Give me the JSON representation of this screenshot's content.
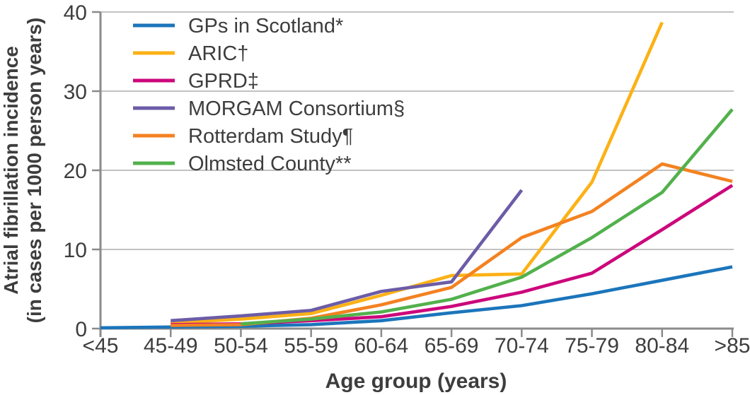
{
  "chart_data": {
    "type": "line",
    "title": "",
    "xlabel": "Age group (years)",
    "ylabel_line1": "Atrial fibrillation incidence",
    "ylabel_line2": "(in cases per 1000 person years)",
    "categories": [
      "<45",
      "45-49",
      "50-54",
      "55-59",
      "60-64",
      "65-69",
      "70-74",
      "75-79",
      "80-84",
      ">85"
    ],
    "yticks": [
      0,
      10,
      20,
      30,
      40
    ],
    "ylim": [
      0,
      40
    ],
    "grid": "horizontal",
    "legend_position": "top-left-inside",
    "series": [
      {
        "name": "GPs in Scotland*",
        "color": "#1b75bb",
        "values": [
          0.1,
          0.2,
          0.3,
          0.5,
          1.0,
          2.0,
          2.9,
          4.4,
          6.1,
          7.8
        ]
      },
      {
        "name": "ARIC†",
        "color": "#fcb115",
        "values": [
          null,
          0.7,
          1.2,
          1.9,
          4.2,
          6.7,
          6.9,
          18.5,
          38.7,
          null
        ]
      },
      {
        "name": "GPRD‡",
        "color": "#cc077c",
        "values": [
          null,
          0.5,
          0.6,
          1.0,
          1.5,
          2.8,
          4.6,
          7.0,
          12.5,
          18.1
        ]
      },
      {
        "name": "MORGAM Consortium§",
        "color": "#6c5ca7",
        "values": [
          null,
          1.0,
          1.6,
          2.3,
          4.7,
          5.9,
          17.5,
          null,
          null,
          null
        ]
      },
      {
        "name": "Rotterdam Study¶",
        "color": "#f38221",
        "values": [
          null,
          0.4,
          0.5,
          1.3,
          3.0,
          5.2,
          11.5,
          14.8,
          20.8,
          18.6
        ]
      },
      {
        "name": "Olmsted County**",
        "color": "#52b14c",
        "values": [
          null,
          null,
          0.6,
          1.2,
          2.1,
          3.7,
          6.5,
          11.5,
          17.2,
          27.7
        ]
      }
    ]
  },
  "colors": {
    "grid": "#c2c2c2",
    "axis": "#8b8b8b",
    "text": "#3d3d3d"
  }
}
